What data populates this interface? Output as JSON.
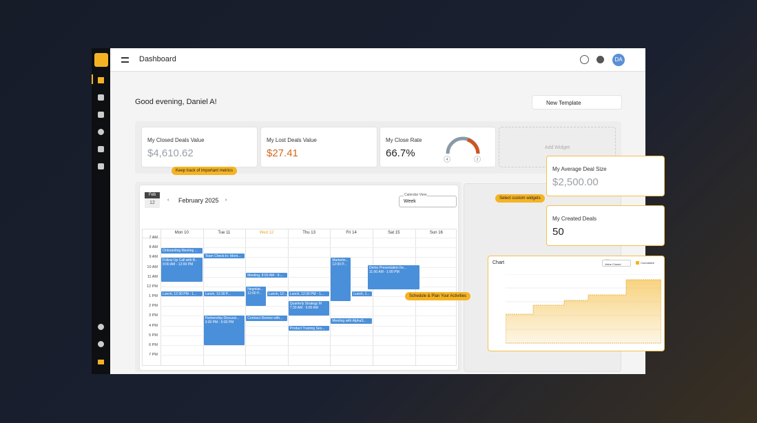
{
  "topbar": {
    "title": "Dashboard",
    "avatar": "DA"
  },
  "greeting": "Good evening, Daniel A!",
  "template_button": "New Template",
  "metrics": [
    {
      "label": "My Closed Deals Value",
      "value": "$4,610.62"
    },
    {
      "label": "My Lost Deals Value",
      "value": "$27.41"
    },
    {
      "label": "My Close Rate",
      "value": "66.7%",
      "gauge_left": "4",
      "gauge_right": "2"
    }
  ],
  "add_widget": "Add Widget",
  "floating_widgets": [
    {
      "label": "My Average Deal Size",
      "value": "$2,500.00"
    },
    {
      "label": "My Created Deals",
      "value": "50"
    }
  ],
  "tooltips": [
    "Keep track of important metrics",
    "Select custom widgets",
    "Schedule & Plan Your Activities"
  ],
  "calendar": {
    "badge_month": "Feb",
    "badge_day": "12",
    "month": "February 2025",
    "view_label": "Calendar View",
    "view": "Week",
    "days": [
      "Mon 10",
      "Tue 11",
      "Wed 12",
      "Thu 13",
      "Fri 14",
      "Sat 15",
      "Sun 16"
    ],
    "hours": [
      "7 AM",
      "8 AM",
      "9 AM",
      "10 AM",
      "11 AM",
      "12 PM",
      "1 PM",
      "2 PM",
      "3 PM",
      "4 PM",
      "5 PM",
      "6 PM",
      "7 PM"
    ],
    "events": [
      {
        "title": "Onboarding Meeting ..."
      },
      {
        "title": "Follow Up Call with B..",
        "time": "9:00 AM - 12:00 PM"
      },
      {
        "title": "Lunch, 12:30 PM - 1..."
      },
      {
        "title": "Team Check-In: Mont..."
      },
      {
        "title": "Lunch, 12:30 P..."
      },
      {
        "title": "Partnership Discussi...",
        "time": "3:00 PM - 5:00 PM"
      },
      {
        "title": "Meeting, 8:00 AM - 9:..."
      },
      {
        "title": "Negotiat...",
        "time": "12:00 P..."
      },
      {
        "title": "Lunch, 12:..."
      },
      {
        "title": "Contract Review with..."
      },
      {
        "title": "Lunch, 12:30 PM - 1..."
      },
      {
        "title": "Quarterly Strategy M",
        "time": "7:30 AM - 9:00 AM"
      },
      {
        "title": "Product Training Ses..."
      },
      {
        "title": "Marketin...",
        "time": "12:00 P..."
      },
      {
        "title": "Lunch, 1..."
      },
      {
        "title": "Meeting with AlphaS..."
      },
      {
        "title": "Demo Presentation for...",
        "time": "11:00 AM - 1:00 PM"
      }
    ]
  },
  "chart_widget": {
    "title": "Chart",
    "view_label": "View",
    "view": "Value Closed",
    "legend": "Cumulative"
  }
}
